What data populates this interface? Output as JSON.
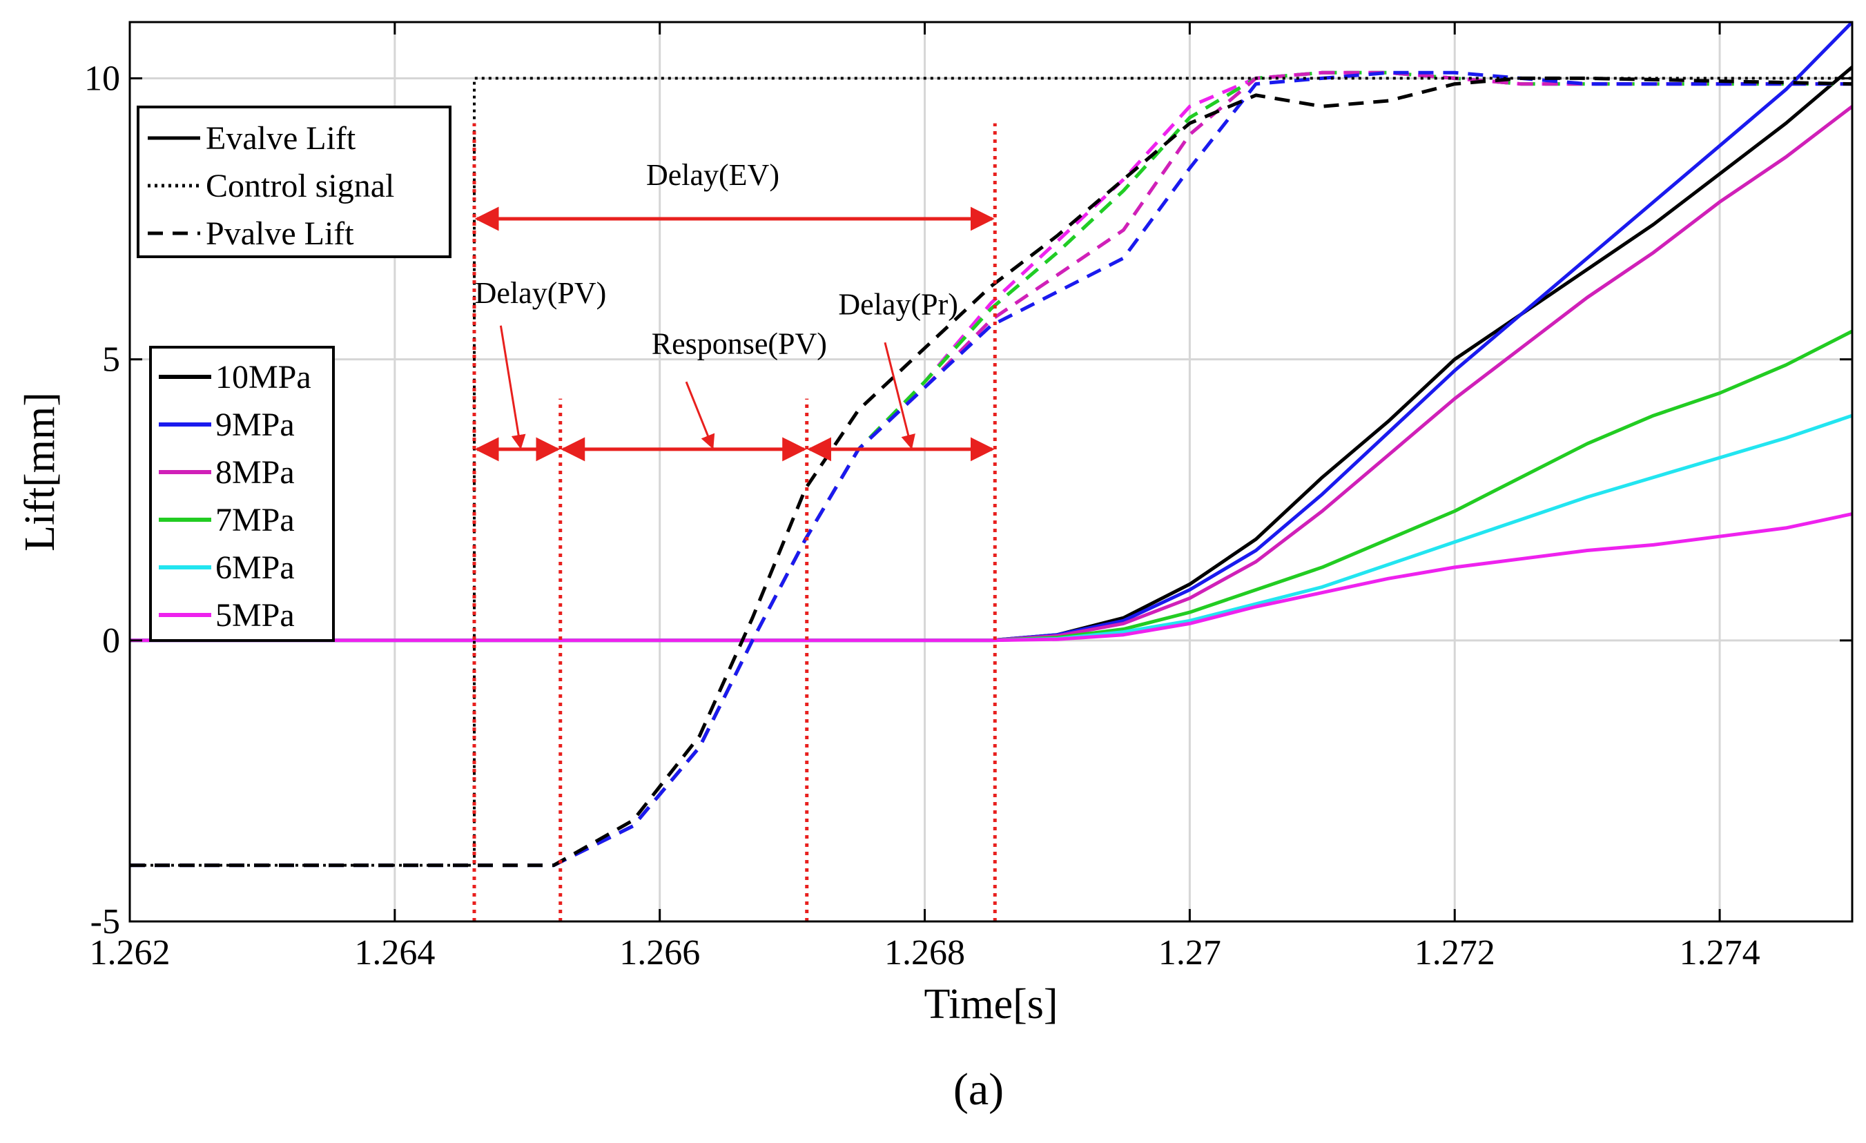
{
  "chart_data": {
    "type": "line",
    "xlabel": "Time[s]",
    "ylabel": "Lift[mm]",
    "xlim": [
      1.262,
      1.275
    ],
    "ylim": [
      -5,
      11
    ],
    "xticks": [
      1.262,
      1.264,
      1.266,
      1.268,
      1.27,
      1.272,
      1.274
    ],
    "xtick_labels": [
      "1.262",
      "1.264",
      "1.266",
      "1.268",
      "1.27",
      "1.272",
      "1.274"
    ],
    "yticks": [
      -5,
      0,
      5,
      10
    ],
    "ytick_labels": [
      "-5",
      "0",
      "5",
      "10"
    ],
    "grid": true,
    "caption": "(a)",
    "style_legend": {
      "position": "top-left",
      "items": [
        {
          "label": "Evalve Lift",
          "dash": "solid"
        },
        {
          "label": "Control signal",
          "dash": "dotted"
        },
        {
          "label": "Pvalve Lift",
          "dash": "dashed"
        }
      ]
    },
    "pressure_legend": {
      "position": "left",
      "items": [
        {
          "label": "10MPa",
          "color": "#000000"
        },
        {
          "label": "9MPa",
          "color": "#1a1aee"
        },
        {
          "label": "8MPa",
          "color": "#d020b8"
        },
        {
          "label": "7MPa",
          "color": "#22cc22"
        },
        {
          "label": "6MPa",
          "color": "#22e5f0"
        },
        {
          "label": "5MPa",
          "color": "#ee22ee"
        }
      ]
    },
    "control_signal": {
      "x": [
        1.262,
        1.2646,
        1.2646,
        1.275
      ],
      "y": [
        -4,
        -4,
        10,
        10
      ]
    },
    "evalve_series": [
      {
        "pressure": "10MPa",
        "color": "#000000",
        "x": [
          1.262,
          1.2685,
          1.269,
          1.2695,
          1.27,
          1.2705,
          1.271,
          1.2715,
          1.272,
          1.2725,
          1.273,
          1.2735,
          1.274,
          1.2745,
          1.275
        ],
        "y": [
          0,
          0,
          0.1,
          0.4,
          1.0,
          1.8,
          2.9,
          3.9,
          5.0,
          5.8,
          6.6,
          7.4,
          8.3,
          9.2,
          10.2
        ]
      },
      {
        "pressure": "9MPa",
        "color": "#1a1aee",
        "x": [
          1.262,
          1.2685,
          1.269,
          1.2695,
          1.27,
          1.2705,
          1.271,
          1.2715,
          1.272,
          1.2725,
          1.273,
          1.2735,
          1.274,
          1.2745,
          1.275
        ],
        "y": [
          0,
          0,
          0.1,
          0.35,
          0.9,
          1.6,
          2.6,
          3.7,
          4.8,
          5.8,
          6.8,
          7.8,
          8.8,
          9.8,
          11.0
        ]
      },
      {
        "pressure": "8MPa",
        "color": "#d020b8",
        "x": [
          1.262,
          1.2685,
          1.269,
          1.2695,
          1.27,
          1.2705,
          1.271,
          1.2715,
          1.272,
          1.2725,
          1.273,
          1.2735,
          1.274,
          1.2745,
          1.275
        ],
        "y": [
          0,
          0,
          0.08,
          0.3,
          0.75,
          1.4,
          2.3,
          3.3,
          4.3,
          5.2,
          6.1,
          6.9,
          7.8,
          8.6,
          9.5
        ]
      },
      {
        "pressure": "7MPa",
        "color": "#22cc22",
        "x": [
          1.262,
          1.2685,
          1.269,
          1.2695,
          1.27,
          1.2705,
          1.271,
          1.2715,
          1.272,
          1.2725,
          1.273,
          1.2735,
          1.274,
          1.2745,
          1.275
        ],
        "y": [
          0,
          0,
          0.05,
          0.2,
          0.5,
          0.9,
          1.3,
          1.8,
          2.3,
          2.9,
          3.5,
          4.0,
          4.4,
          4.9,
          5.5
        ]
      },
      {
        "pressure": "6MPa",
        "color": "#22e5f0",
        "x": [
          1.262,
          1.2685,
          1.269,
          1.2695,
          1.27,
          1.2705,
          1.271,
          1.2715,
          1.272,
          1.2725,
          1.273,
          1.2735,
          1.274,
          1.2745,
          1.275
        ],
        "y": [
          0,
          0,
          0.03,
          0.15,
          0.35,
          0.65,
          0.95,
          1.35,
          1.75,
          2.15,
          2.55,
          2.9,
          3.25,
          3.6,
          4.0
        ]
      },
      {
        "pressure": "5MPa",
        "color": "#ee22ee",
        "x": [
          1.262,
          1.2685,
          1.269,
          1.2695,
          1.27,
          1.2705,
          1.271,
          1.2715,
          1.272,
          1.2725,
          1.273,
          1.2735,
          1.274,
          1.2745,
          1.275
        ],
        "y": [
          0,
          0,
          0.02,
          0.1,
          0.3,
          0.6,
          0.85,
          1.1,
          1.3,
          1.45,
          1.6,
          1.7,
          1.85,
          2.0,
          2.25
        ]
      }
    ],
    "pvalve_series": [
      {
        "pressure": "10MPa",
        "color": "#000000",
        "x": [
          1.262,
          1.2652,
          1.2658,
          1.2663,
          1.2667,
          1.2671,
          1.2675,
          1.268,
          1.2685,
          1.269,
          1.2695,
          1.27,
          1.2705,
          1.271,
          1.2715,
          1.272,
          1.2725,
          1.273,
          1.275
        ],
        "y": [
          -4,
          -4,
          -3.2,
          -1.7,
          0.4,
          2.7,
          4.1,
          5.2,
          6.3,
          7.2,
          8.2,
          9.2,
          9.7,
          9.5,
          9.6,
          9.9,
          10.0,
          10.0,
          9.9
        ]
      },
      {
        "pressure": "9MPa",
        "color": "#1a1aee",
        "x": [
          1.262,
          1.2652,
          1.2658,
          1.2663,
          1.2667,
          1.2671,
          1.2675,
          1.268,
          1.2685,
          1.269,
          1.2695,
          1.27,
          1.2705,
          1.271,
          1.2715,
          1.272,
          1.2725,
          1.273,
          1.275
        ],
        "y": [
          -4,
          -4,
          -3.3,
          -1.9,
          0.0,
          1.8,
          3.4,
          4.5,
          5.6,
          6.2,
          6.8,
          8.4,
          9.9,
          10.0,
          10.1,
          10.1,
          10.0,
          9.9,
          9.9
        ]
      },
      {
        "pressure": "8MPa",
        "color": "#d020b8",
        "x": [
          1.262,
          1.2652,
          1.2658,
          1.2663,
          1.2667,
          1.2671,
          1.2675,
          1.268,
          1.2685,
          1.269,
          1.2695,
          1.27,
          1.2705,
          1.271,
          1.2715,
          1.272,
          1.2725,
          1.273,
          1.275
        ],
        "y": [
          -4,
          -4,
          -3.3,
          -1.9,
          0.0,
          1.8,
          3.4,
          4.5,
          5.7,
          6.5,
          7.3,
          9.0,
          10.0,
          10.1,
          10.1,
          10.0,
          9.9,
          9.9,
          9.9
        ]
      },
      {
        "pressure": "7MPa",
        "color": "#22cc22",
        "x": [
          1.262,
          1.2652,
          1.2658,
          1.2663,
          1.2667,
          1.2671,
          1.2675,
          1.268,
          1.2685,
          1.269,
          1.2695,
          1.27,
          1.2705,
          1.271,
          1.2715,
          1.272,
          1.2725,
          1.273,
          1.275
        ],
        "y": [
          -4,
          -4,
          -3.3,
          -1.9,
          0.0,
          1.8,
          3.4,
          4.6,
          5.9,
          6.9,
          8.0,
          9.3,
          10.0,
          10.1,
          10.1,
          10.0,
          9.9,
          9.9,
          9.9
        ]
      },
      {
        "pressure": "6MPa",
        "color": "#22e5f0",
        "x": [
          1.262,
          1.2652,
          1.2658,
          1.2663,
          1.2667,
          1.2671,
          1.2675,
          1.268,
          1.2685,
          1.269,
          1.2695,
          1.27,
          1.2705,
          1.271,
          1.2715,
          1.272,
          1.2725,
          1.273,
          1.275
        ],
        "y": [
          -4,
          -4,
          -3.3,
          -1.9,
          0.0,
          1.8,
          3.4,
          4.6,
          5.9,
          6.9,
          8.0,
          9.3,
          10.0,
          10.1,
          10.1,
          10.0,
          9.9,
          9.9,
          9.9
        ]
      },
      {
        "pressure": "5MPa",
        "color": "#ee22ee",
        "x": [
          1.262,
          1.2652,
          1.2658,
          1.2663,
          1.2667,
          1.2671,
          1.2675,
          1.268,
          1.2685,
          1.269,
          1.2695,
          1.27,
          1.2705,
          1.271,
          1.2715,
          1.272,
          1.2725,
          1.273,
          1.275
        ],
        "y": [
          -4,
          -4,
          -3.3,
          -1.9,
          0.0,
          1.8,
          3.4,
          4.6,
          6.0,
          7.1,
          8.2,
          9.5,
          10.0,
          10.1,
          10.1,
          10.0,
          9.9,
          9.9,
          9.9
        ]
      }
    ],
    "annotations": {
      "color": "#e8201e",
      "vlines_x": [
        1.2646,
        1.26525,
        1.26711,
        1.26853
      ],
      "spans": [
        {
          "label": "Delay(EV)",
          "x0": 1.2646,
          "x1": 1.26853,
          "y": 7.5,
          "label_y": 8.1,
          "label_x": 1.2664
        },
        {
          "label": "Delay(PV)",
          "x0": 1.2646,
          "x1": 1.26525,
          "y": 3.4,
          "label_y": 6.0,
          "label_x": 1.2651,
          "pointer": [
            1.2648,
            5.6,
            1.26495,
            3.4
          ]
        },
        {
          "label": "Response(PV)",
          "x0": 1.26525,
          "x1": 1.26711,
          "y": 3.4,
          "label_y": 5.1,
          "label_x": 1.2666,
          "pointer": [
            1.2662,
            4.6,
            1.2664,
            3.4
          ]
        },
        {
          "label": "Delay(Pr)",
          "x0": 1.26711,
          "x1": 1.26853,
          "y": 3.4,
          "label_y": 5.8,
          "label_x": 1.2678,
          "pointer": [
            1.2677,
            5.3,
            1.2679,
            3.4
          ]
        }
      ]
    }
  }
}
